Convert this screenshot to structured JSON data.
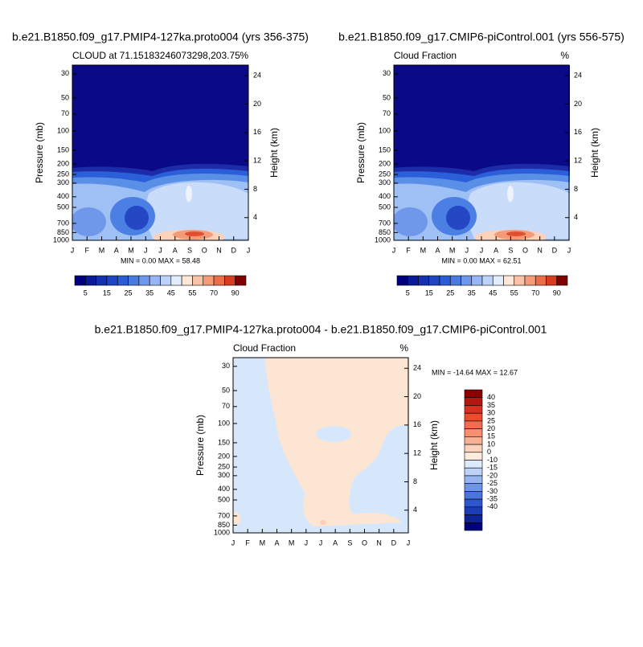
{
  "chart_data": [
    {
      "type": "contour",
      "title": "b.e21.B1850.f09_g17.PMIP4-127ka.proto004 (yrs 356-375)",
      "subtitle": "CLOUD at 71.15183246073298,203.75",
      "units": "%",
      "stats": "MIN =   0.00 MAX =  58.48",
      "ylabel": "Pressure (mb)",
      "y2label": "Height (km)",
      "categories": [
        "J",
        "F",
        "M",
        "A",
        "M",
        "J",
        "J",
        "A",
        "S",
        "O",
        "N",
        "D",
        "J"
      ],
      "log_y": true,
      "ylim": [
        1000,
        25
      ],
      "yticks": [
        30,
        50,
        70,
        100,
        150,
        200,
        250,
        300,
        400,
        500,
        700,
        850,
        1000
      ],
      "y2lim": [
        0.8,
        25.5
      ],
      "y2ticks": [
        4,
        8,
        12,
        16,
        20,
        24
      ],
      "colorbar": {
        "orientation": "horizontal",
        "labels": [
          5,
          15,
          25,
          35,
          45,
          55,
          70,
          90
        ],
        "colors": [
          "#00007f",
          "#0a1a9a",
          "#1530b0",
          "#1f45c5",
          "#2c5bd6",
          "#4a79e0",
          "#6f97ea",
          "#97b6f3",
          "#bcd2f8",
          "#e3eefc",
          "#fde8d8",
          "#f9c3a8",
          "#f49a78",
          "#ec6c4a",
          "#d93a22",
          "#7f0000"
        ]
      }
    },
    {
      "type": "contour",
      "title": "b.e21.B1850.f09_g17.CMIP6-piControl.001 (yrs 556-575)",
      "subtitle": "Cloud Fraction",
      "units": "%",
      "stats": "MIN =   0.00 MAX =  62.51",
      "ylabel": "Pressure (mb)",
      "y2label": "Height (km)",
      "categories": [
        "J",
        "F",
        "M",
        "A",
        "M",
        "J",
        "J",
        "A",
        "S",
        "O",
        "N",
        "D",
        "J"
      ],
      "log_y": true,
      "ylim": [
        1000,
        25
      ],
      "yticks": [
        30,
        50,
        70,
        100,
        150,
        200,
        250,
        300,
        400,
        500,
        700,
        850,
        1000
      ],
      "y2lim": [
        0.8,
        25.5
      ],
      "y2ticks": [
        4,
        8,
        12,
        16,
        20,
        24
      ],
      "colorbar": {
        "orientation": "horizontal",
        "labels": [
          5,
          15,
          25,
          35,
          45,
          55,
          70,
          90
        ],
        "colors": [
          "#00007f",
          "#0a1a9a",
          "#1530b0",
          "#1f45c5",
          "#2c5bd6",
          "#4a79e0",
          "#6f97ea",
          "#97b6f3",
          "#bcd2f8",
          "#e3eefc",
          "#fde8d8",
          "#f9c3a8",
          "#f49a78",
          "#ec6c4a",
          "#d93a22",
          "#7f0000"
        ]
      }
    },
    {
      "type": "contour",
      "title": "b.e21.B1850.f09_g17.PMIP4-127ka.proto004 - b.e21.B1850.f09_g17.CMIP6-piControl.001",
      "subtitle": "Cloud Fraction",
      "units": "%",
      "stats": "MIN = -14.64 MAX =  12.67",
      "ylabel": "Pressure (mb)",
      "y2label": "Height (km)",
      "categories": [
        "J",
        "F",
        "M",
        "A",
        "M",
        "J",
        "J",
        "A",
        "S",
        "O",
        "N",
        "D",
        "J"
      ],
      "log_y": true,
      "ylim": [
        1000,
        25
      ],
      "yticks": [
        30,
        50,
        70,
        100,
        150,
        200,
        250,
        300,
        400,
        500,
        700,
        850,
        1000
      ],
      "y2lim": [
        0.8,
        25.5
      ],
      "y2ticks": [
        4,
        8,
        12,
        16,
        20,
        24
      ],
      "colorbar": {
        "orientation": "vertical",
        "labels": [
          40,
          35,
          30,
          25,
          20,
          15,
          10,
          0,
          -10,
          -15,
          -20,
          -25,
          -30,
          -35,
          -40
        ],
        "colors": [
          "#8b0000",
          "#b31810",
          "#d83020",
          "#ee4a2c",
          "#f46c4e",
          "#f78f70",
          "#f9b196",
          "#fcd2bc",
          "#fdebdc",
          "#ddeafb",
          "#bcd2f7",
          "#97b6f1",
          "#6f95e8",
          "#4a75dd",
          "#2d57cf",
          "#1d3cb8",
          "#0f2399",
          "#00007f"
        ]
      }
    }
  ]
}
